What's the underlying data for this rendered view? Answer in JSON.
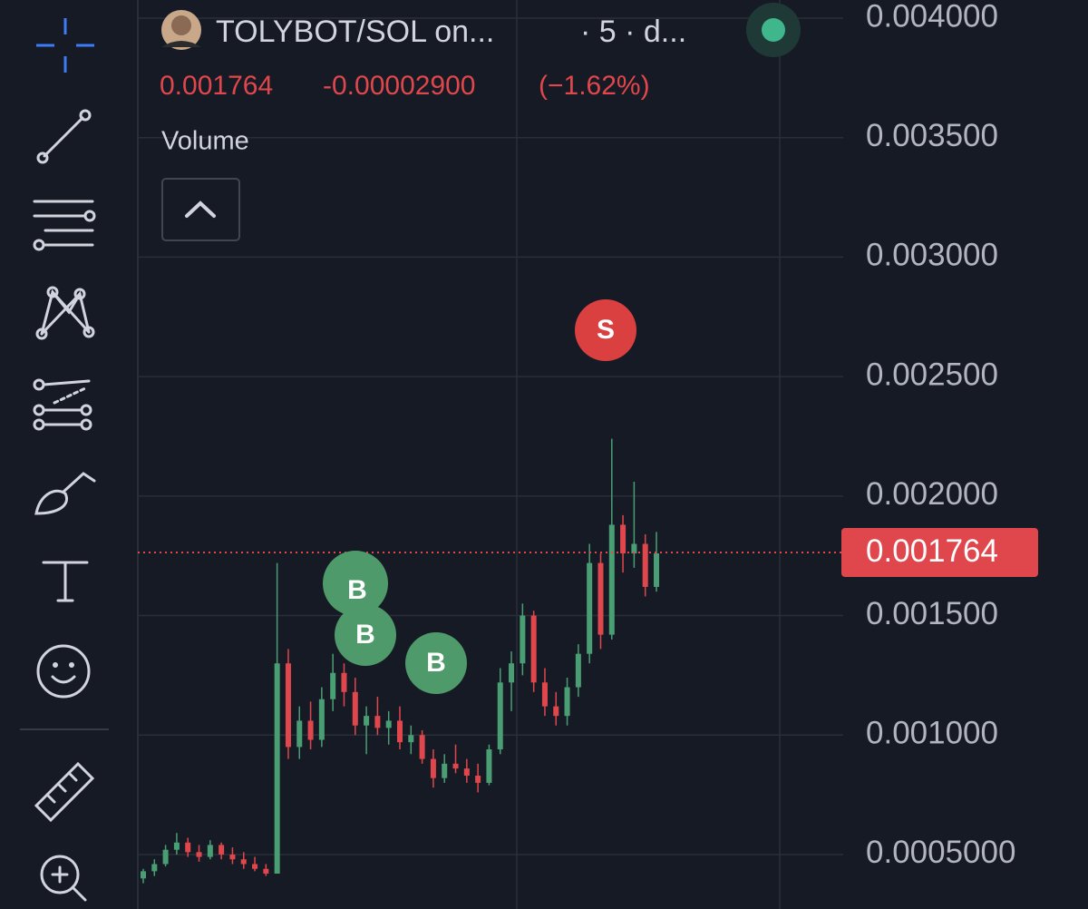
{
  "chart_data": {
    "type": "candlestick",
    "title": "TOLYBOT/SOL on...",
    "subtitle": "· 5 · d...",
    "change": "-0.00002900",
    "change_pct": "(−1.62%)",
    "indicator": "Volume",
    "markers": [
      "B",
      "B",
      "B",
      "S"
    ],
    "price_line": {
      "value": 0.001764,
      "label": "0.001764"
    },
    "categories": [
      null,
      null,
      null,
      null,
      null,
      null,
      null,
      null,
      null,
      null,
      null,
      null,
      null,
      null,
      null,
      null,
      null,
      null,
      null,
      null,
      null,
      null,
      null,
      null,
      null,
      null,
      null,
      null,
      null,
      null,
      null,
      null,
      null,
      null,
      null,
      null,
      null,
      null,
      null,
      null,
      null,
      null,
      null,
      null,
      null,
      null,
      null
    ],
    "open": [
      0.0004,
      0.00043,
      0.00046,
      0.00052,
      0.00055,
      0.00051,
      0.00049,
      0.00054,
      0.0005,
      0.00048,
      0.00046,
      0.00044,
      0.00042,
      0.0013,
      0.00095,
      0.00106,
      0.00098,
      0.00115,
      0.00126,
      0.00118,
      0.00104,
      0.00108,
      0.00103,
      0.00106,
      0.00097,
      0.001,
      0.0009,
      0.00082,
      0.00088,
      0.00086,
      0.00083,
      0.0008,
      0.00094,
      0.00122,
      0.0013,
      0.0015,
      0.00122,
      0.00112,
      0.00108,
      0.0012,
      0.00134,
      0.00172,
      0.00142,
      0.00188,
      0.00176,
      0.0018,
      0.00162
    ],
    "high": [
      0.00044,
      0.00048,
      0.00054,
      0.00059,
      0.00057,
      0.00054,
      0.00056,
      0.00055,
      0.00053,
      0.00051,
      0.00049,
      0.00046,
      0.00172,
      0.00136,
      0.00112,
      0.00114,
      0.0012,
      0.00134,
      0.0013,
      0.00124,
      0.00112,
      0.00116,
      0.0011,
      0.00112,
      0.00104,
      0.00102,
      0.00094,
      0.00092,
      0.00096,
      0.0009,
      0.00088,
      0.00096,
      0.00128,
      0.00135,
      0.00155,
      0.00152,
      0.00128,
      0.00118,
      0.00124,
      0.00138,
      0.0018,
      0.00176,
      0.00224,
      0.00192,
      0.00206,
      0.00184,
      0.00185
    ],
    "low": [
      0.00038,
      0.00041,
      0.00045,
      0.0005,
      0.00049,
      0.00047,
      0.00048,
      0.00048,
      0.00046,
      0.00044,
      0.00043,
      0.00041,
      0.00042,
      0.0009,
      0.0009,
      0.00094,
      0.00095,
      0.0011,
      0.00112,
      0.001,
      0.00092,
      0.001,
      0.00096,
      0.00094,
      0.00092,
      0.00088,
      0.00078,
      0.0008,
      0.00084,
      0.0008,
      0.00076,
      0.00079,
      0.00092,
      0.0011,
      0.00125,
      0.00118,
      0.00108,
      0.00104,
      0.00104,
      0.00116,
      0.0013,
      0.00136,
      0.0014,
      0.00168,
      0.0017,
      0.00158,
      0.0016
    ],
    "close": [
      0.00043,
      0.00046,
      0.00052,
      0.00055,
      0.00051,
      0.00049,
      0.00054,
      0.0005,
      0.00048,
      0.00046,
      0.00044,
      0.00042,
      0.0013,
      0.00095,
      0.00106,
      0.00098,
      0.00115,
      0.00126,
      0.00118,
      0.00104,
      0.00108,
      0.00103,
      0.00106,
      0.00097,
      0.001,
      0.0009,
      0.00082,
      0.00088,
      0.00086,
      0.00083,
      0.0008,
      0.00094,
      0.00122,
      0.0013,
      0.0015,
      0.00122,
      0.00112,
      0.00108,
      0.0012,
      0.00134,
      0.00172,
      0.00142,
      0.00188,
      0.00176,
      0.0018,
      0.00162,
      0.00176
    ],
    "up_color": "#4a9e74",
    "down_color": "#e0474c",
    "ylim": [
      0.000272,
      0.004076
    ],
    "yticks": [
      {
        "value": 0.0005,
        "label": "0.0005000"
      },
      {
        "value": 0.001,
        "label": "0.001000"
      },
      {
        "value": 0.0015,
        "label": "0.001500"
      },
      {
        "value": 0.002,
        "label": "0.002000"
      },
      {
        "value": 0.0025,
        "label": "0.002500"
      },
      {
        "value": 0.003,
        "label": "0.003000"
      },
      {
        "value": 0.0035,
        "label": "0.003500"
      },
      {
        "value": 0.004,
        "label": "0.004000"
      }
    ],
    "grid": true
  }
}
